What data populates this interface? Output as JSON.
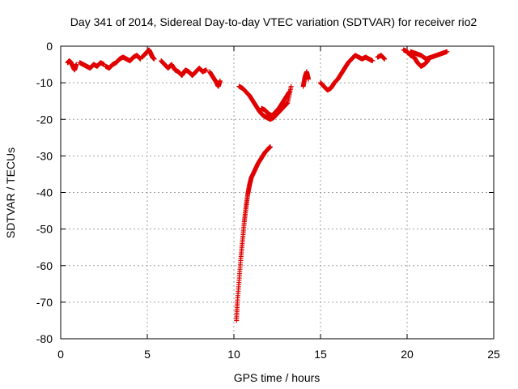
{
  "chart_data": {
    "type": "scatter",
    "title": "Day 341 of 2014, Sidereal Day-to-day VTEC variation (SDTVAR) for receiver rio2",
    "xlabel": "GPS time / hours",
    "ylabel": "SDTVAR / TECUs",
    "xlim": [
      0,
      25
    ],
    "ylim": [
      -80,
      0
    ],
    "xticks": [
      0,
      5,
      10,
      15,
      20,
      25
    ],
    "xtick_labels": [
      "0",
      "5",
      "10",
      "15",
      "20",
      "25"
    ],
    "yticks": [
      0,
      -10,
      -20,
      -30,
      -40,
      -50,
      -60,
      -70,
      -80
    ],
    "ytick_labels": [
      "0",
      "-10",
      "-20",
      "-30",
      "-40",
      "-50",
      "-60",
      "-70",
      "-80"
    ],
    "grid": true,
    "marker": "plus",
    "colors": {
      "series": "#e00000",
      "grid": "#a0a0a0",
      "axis": "#000000"
    },
    "series": [
      {
        "name": "SDTVAR",
        "segments": [
          {
            "x": [
              0.4,
              0.5,
              0.6,
              0.7,
              0.8,
              0.9
            ],
            "y": [
              -4.5,
              -4.0,
              -4.5,
              -5.5,
              -6.5,
              -5.0
            ]
          },
          {
            "x": [
              1.1,
              1.3,
              1.5,
              1.7,
              1.9,
              2.1,
              2.3,
              2.5
            ],
            "y": [
              -4.5,
              -5.0,
              -5.5,
              -6.0,
              -5.0,
              -5.5,
              -4.5,
              -5.0
            ]
          },
          {
            "x": [
              2.6,
              2.8,
              3.0,
              3.2,
              3.4,
              3.6,
              3.8,
              4.0,
              4.2,
              4.4,
              4.6
            ],
            "y": [
              -5.5,
              -6.0,
              -5.0,
              -4.5,
              -3.5,
              -3.0,
              -3.5,
              -4.0,
              -3.0,
              -2.5,
              -3.5
            ]
          },
          {
            "x": [
              4.7,
              4.9,
              5.0,
              5.1,
              5.2,
              5.3,
              5.4
            ],
            "y": [
              -3.0,
              -2.0,
              -1.5,
              -1.0,
              -2.0,
              -3.0,
              -3.5
            ]
          },
          {
            "x": [
              5.8,
              6.0,
              6.2,
              6.4,
              6.6,
              6.8,
              7.0,
              7.2,
              7.4,
              7.6,
              7.8,
              8.0,
              8.2,
              8.4
            ],
            "y": [
              -4.0,
              -5.0,
              -6.0,
              -5.0,
              -6.5,
              -7.0,
              -8.0,
              -6.5,
              -7.0,
              -8.0,
              -7.0,
              -6.0,
              -7.0,
              -6.5
            ]
          },
          {
            "x": [
              8.6,
              8.8,
              9.0,
              9.1,
              9.2
            ],
            "y": [
              -7.0,
              -8.5,
              -10.0,
              -11.0,
              -9.5
            ]
          },
          {
            "x": [
              10.3,
              10.5,
              10.7,
              10.9,
              11.1,
              11.3,
              11.5,
              11.7,
              11.9,
              12.1,
              12.3,
              12.5,
              12.7,
              12.9,
              13.1,
              13.3
            ],
            "y": [
              -11.0,
              -11.5,
              -12.5,
              -13.5,
              -15.0,
              -16.5,
              -18.0,
              -19.0,
              -19.5,
              -20.0,
              -19.5,
              -18.5,
              -17.5,
              -16.5,
              -15.5,
              -11.0
            ]
          },
          {
            "x": [
              11.6,
              11.8,
              12.0,
              12.2,
              12.4,
              12.6,
              12.8,
              13.0,
              13.2
            ],
            "y": [
              -17.0,
              -17.5,
              -18.5,
              -19.0,
              -18.0,
              -17.0,
              -15.5,
              -14.0,
              -12.5
            ]
          },
          {
            "x": [
              14.0,
              14.1,
              14.2,
              14.3
            ],
            "y": [
              -11.0,
              -8.5,
              -7.0,
              -9.0
            ]
          },
          {
            "x": [
              15.0,
              15.2,
              15.4,
              15.6,
              15.8,
              16.0,
              16.2,
              16.4,
              16.6,
              16.8,
              17.0,
              17.2,
              17.4,
              17.6,
              17.8,
              18.0
            ],
            "y": [
              -10.0,
              -11.0,
              -12.0,
              -11.5,
              -10.0,
              -9.0,
              -7.5,
              -6.0,
              -4.5,
              -3.5,
              -2.5,
              -3.0,
              -3.5,
              -3.0,
              -3.5,
              -4.0
            ]
          },
          {
            "x": [
              18.3,
              18.5,
              18.7
            ],
            "y": [
              -3.0,
              -2.5,
              -3.5
            ]
          },
          {
            "x": [
              19.8,
              20.0,
              20.2,
              20.4,
              20.6,
              20.8,
              21.0,
              21.2
            ],
            "y": [
              -1.0,
              -1.5,
              -2.5,
              -3.0,
              -4.5,
              -5.5,
              -5.0,
              -4.0
            ]
          },
          {
            "x": [
              20.2,
              20.5,
              20.8,
              21.1,
              21.4,
              21.7,
              22.0,
              22.3
            ],
            "y": [
              -1.5,
              -2.0,
              -2.5,
              -3.5,
              -3.0,
              -2.5,
              -2.0,
              -1.5
            ]
          },
          {
            "x": [
              10.15,
              10.2,
              10.3,
              10.4,
              10.5,
              10.6,
              10.7,
              10.8,
              10.9,
              11.0,
              11.2,
              11.4,
              11.6,
              11.8,
              12.0,
              12.1
            ],
            "y": [
              -75.0,
              -70.0,
              -64.0,
              -58.0,
              -53.0,
              -48.0,
              -44.0,
              -40.5,
              -38.0,
              -36.0,
              -34.0,
              -32.0,
              -30.5,
              -29.0,
              -28.0,
              -27.5
            ]
          }
        ]
      }
    ]
  }
}
